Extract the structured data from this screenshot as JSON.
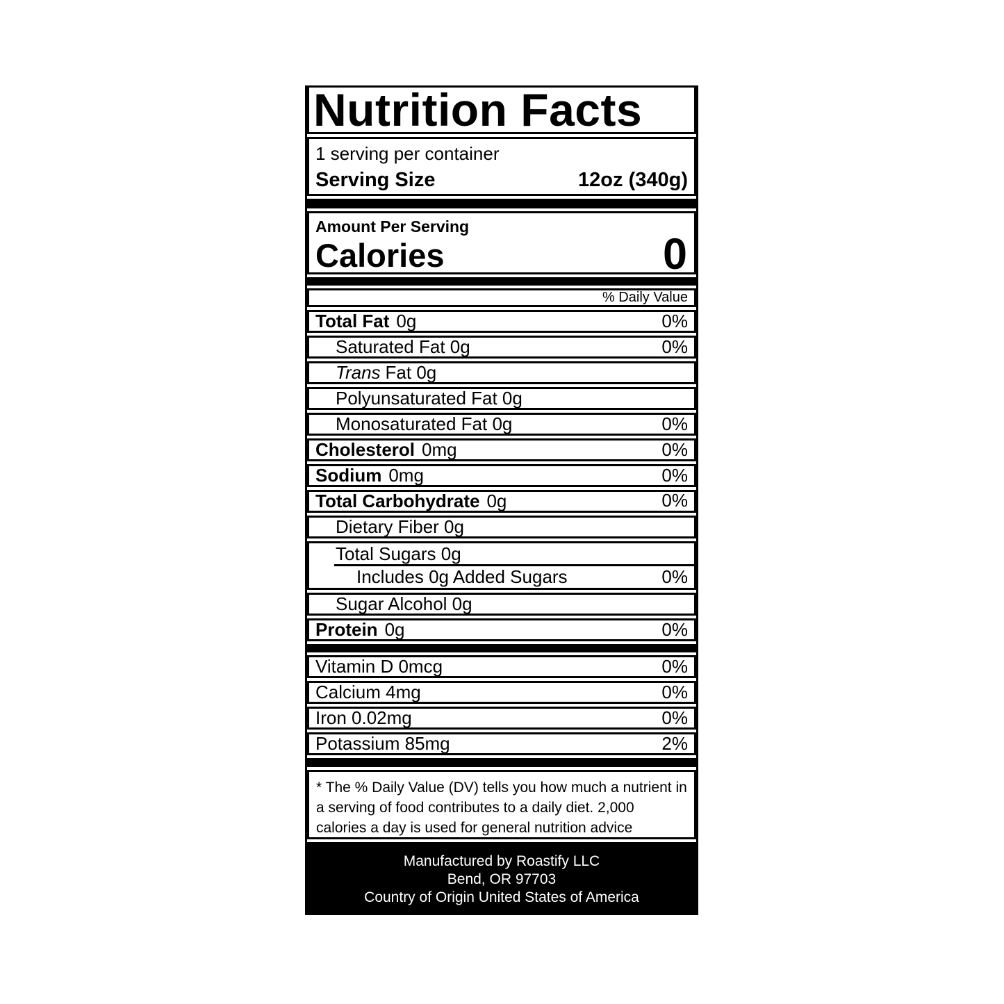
{
  "colors": {
    "ink": "#000000",
    "paper": "#ffffff",
    "footer_bg": "#000000",
    "footer_text": "#ffffff"
  },
  "label": {
    "title": "Nutrition Facts",
    "servings_per_container": "1 serving per container",
    "serving_size_label": "Serving Size",
    "serving_size_value": "12oz (340g)",
    "amount_per_serving": "Amount Per Serving",
    "calories_label": "Calories",
    "calories_value": "0",
    "daily_value_header": "% Daily Value",
    "footnote": "* The % Daily Value (DV) tells you how much a nutrient in a serving of food contributes to a daily diet. 2,000 calories a day is used for general nutrition advice",
    "footer_lines": [
      "Manufactured by Roastify LLC",
      "Bend, OR 97703",
      "Country of Origin United States of America"
    ]
  },
  "rows": {
    "total_fat": {
      "name": "Total Fat",
      "amount": "0g",
      "dv": "0%"
    },
    "saturated_fat": {
      "label": "Saturated Fat 0g",
      "dv": "0%"
    },
    "trans_fat": {
      "italic": "Trans",
      "label": "Fat 0g"
    },
    "polyunsaturated_fat": {
      "label": "Polyunsaturated Fat 0g"
    },
    "monosaturated_fat": {
      "label": "Monosaturated Fat 0g",
      "dv": "0%"
    },
    "cholesterol": {
      "name": "Cholesterol",
      "amount": "0mg",
      "dv": "0%"
    },
    "sodium": {
      "name": "Sodium",
      "amount": "0mg",
      "dv": "0%"
    },
    "total_carbohydrate": {
      "name": "Total Carbohydrate",
      "amount": "0g",
      "dv": "0%"
    },
    "dietary_fiber": {
      "label": "Dietary Fiber 0g"
    },
    "total_sugars": {
      "label": "Total Sugars 0g"
    },
    "added_sugars": {
      "label": "Includes 0g Added Sugars",
      "dv": "0%"
    },
    "sugar_alcohol": {
      "label": "Sugar Alcohol 0g"
    },
    "protein": {
      "name": "Protein",
      "amount": "0g",
      "dv": "0%"
    }
  },
  "micronutrients": {
    "vitamin_d": {
      "label": "Vitamin D 0mcg",
      "dv": "0%"
    },
    "calcium": {
      "label": "Calcium 4mg",
      "dv": "0%"
    },
    "iron": {
      "label": "Iron 0.02mg",
      "dv": "0%"
    },
    "potassium": {
      "label": "Potassium 85mg",
      "dv": "2%"
    }
  }
}
